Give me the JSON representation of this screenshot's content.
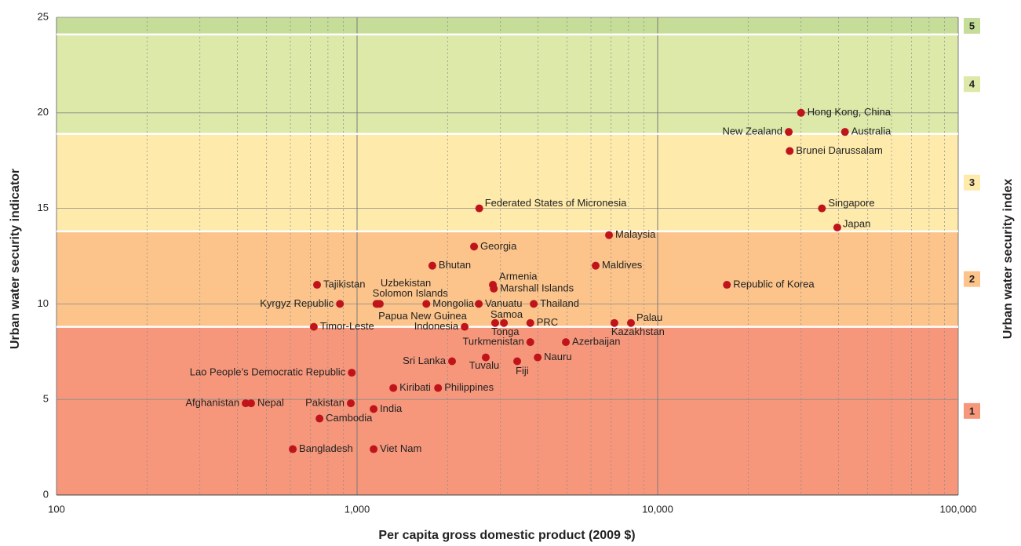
{
  "chart_data": {
    "type": "scatter",
    "x_label": "Per capita gross domestic product (2009 $)",
    "y_label": "Urban water security indicator",
    "y2_label": "Urban water security index",
    "xlim": [
      100,
      100000
    ],
    "xticks": [
      100,
      {
        "value": 1000,
        "label": "1,000"
      },
      {
        "value": 10000,
        "label": "10,000"
      },
      {
        "value": 100000,
        "label": "100,000"
      }
    ],
    "xlog": true,
    "ylim": [
      0,
      25
    ],
    "yticks": [
      0,
      5,
      10,
      15,
      20,
      25
    ],
    "grid": true,
    "bands": [
      {
        "label": "1",
        "from": 0,
        "to": 8.8,
        "color": "#f6977c"
      },
      {
        "label": "2",
        "from": 8.8,
        "to": 13.8,
        "color": "#fcc48b"
      },
      {
        "label": "3",
        "from": 13.8,
        "to": 18.9,
        "color": "#feeaab"
      },
      {
        "label": "4",
        "from": 18.9,
        "to": 24.1,
        "color": "#dce9a9"
      },
      {
        "label": "5",
        "from": 24.1,
        "to": 25,
        "color": "#c5dd99"
      }
    ],
    "series": [
      {
        "color": "#c0141b",
        "labels": [
          "Hong Kong, China",
          "New Zealand",
          "Australia",
          "Brunei Darussalam",
          "Singapore",
          "Japan",
          "Federated States of Micronesia",
          "Malaysia",
          "Georgia",
          "Bhutan",
          "Maldives",
          "Tajikistan",
          "Armenia",
          "Marshall Islands",
          "Republic of Korea",
          "Kyrgyz Republic",
          "Uzbekistan",
          "Solomon Islands",
          "Papua New Guinea",
          "Mongolia",
          "Vanuatu",
          "Thailand",
          "Timor-Leste",
          "Indonesia",
          "Samoa",
          "Tonga",
          "PRC",
          "Kazakhstan",
          "Palau",
          "Turkmenistan",
          "Azerbaijan",
          "Sri Lanka",
          "Tuvalu",
          "Fiji",
          "Nauru",
          "Lao People’s Democratic Republic",
          "Kiribati",
          "Philippines",
          "Afghanistan",
          "Nepal",
          "Pakistan",
          "India",
          "Cambodia",
          "Bangladesh",
          "Viet Nam"
        ],
        "x": [
          30000,
          27300,
          42000,
          27500,
          35200,
          39600,
          2550,
          6890,
          2450,
          1780,
          6220,
          736,
          2830,
          2850,
          17000,
          877,
          1190,
          1160,
          1170,
          1700,
          2540,
          3870,
          718,
          2280,
          2880,
          3080,
          3770,
          7180,
          8150,
          3770,
          4950,
          2070,
          2680,
          3410,
          3990,
          960,
          1320,
          1860,
          426,
          444,
          953,
          1135,
          750,
          611,
          1135
        ],
        "values": [
          20,
          19,
          19,
          18,
          15,
          14,
          15,
          13.6,
          13,
          12,
          12,
          11,
          11,
          10.8,
          11,
          10,
          10,
          10,
          10,
          10,
          10,
          10,
          8.8,
          8.8,
          9,
          9,
          9,
          9,
          9,
          8,
          8,
          7,
          7.2,
          7,
          7.2,
          6.4,
          5.6,
          5.6,
          4.8,
          4.8,
          4.8,
          4.5,
          4,
          2.4,
          2.4
        ]
      }
    ]
  }
}
